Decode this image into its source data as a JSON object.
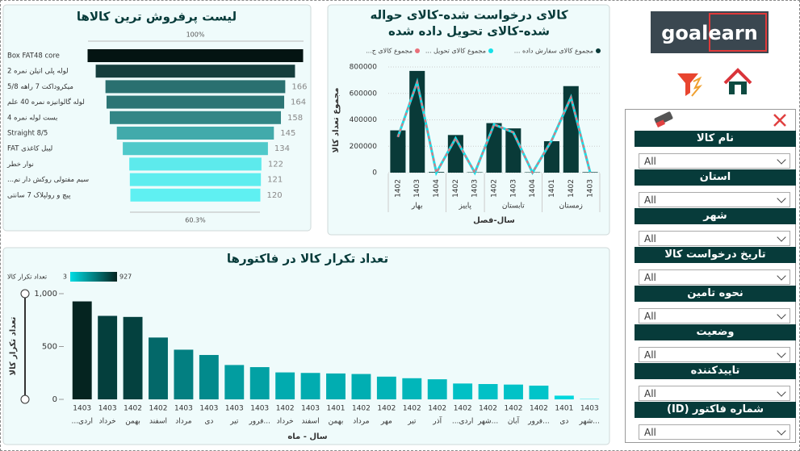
{
  "logo": "goalearn",
  "chart_data": [
    {
      "type": "funnel",
      "title": "لیست پرفروش ترین کالاها",
      "categories": [
        "Box FAT48 core",
        "لوله پلی اتیلن نمره 2",
        "میکروداکت 7 راهه 5/8",
        "لوله گالوانیزه نمره 40 علم",
        "بست لوله نمره 4",
        "Straight 8/5",
        "لیبل کاغذی FAT",
        "نوار خطر",
        "سیم مفتولی روکش دار نم...",
        "پیچ و رولپلاک 7 سانتی"
      ],
      "values": [
        199,
        184,
        166,
        164,
        158,
        145,
        134,
        122,
        121,
        120
      ],
      "top_label": "100%",
      "bottom_label": "60.3%",
      "color_range": [
        "#5ff0f2",
        "#041412"
      ]
    },
    {
      "type": "combo",
      "title": [
        "کالای درخواست شده-کالای حواله",
        "شده-کالای تحویل داده شده"
      ],
      "category_groups": [
        {
          "label": "بهار",
          "categories": [
            "1402",
            "1403",
            "1404"
          ]
        },
        {
          "label": "پاییز",
          "categories": [
            "1402",
            "1403"
          ]
        },
        {
          "label": "تابستان",
          "categories": [
            "1402",
            "1403",
            "1404"
          ]
        },
        {
          "label": "زمستان",
          "categories": [
            "1401",
            "1402",
            "1403"
          ]
        }
      ],
      "series": [
        {
          "name": "مجموع کالای سفارش داده ...",
          "color": "#093a38",
          "type": "bar",
          "values": [
            320000,
            770000,
            5000,
            285000,
            3000,
            375000,
            335000,
            3000,
            238000,
            655000,
            4000
          ]
        },
        {
          "name": "مجموع کالای تحویل ...",
          "color": "#16e0e8",
          "type": "line",
          "values": [
            270000,
            685000,
            0,
            260000,
            0,
            365000,
            305000,
            0,
            245000,
            570000,
            0
          ]
        },
        {
          "name": "مجموع کالای ج...",
          "color": "#e8707a",
          "type": "line",
          "style": "dashed",
          "values": [
            270000,
            685000,
            0,
            260000,
            0,
            365000,
            305000,
            0,
            245000,
            570000,
            0
          ]
        }
      ],
      "ylim": [
        0,
        800000
      ],
      "yticks": [
        0,
        200000,
        400000,
        600000,
        800000
      ],
      "ylabel": "مجموع تعداد کالا",
      "xlabel": "سال-فصل",
      "grid": true
    },
    {
      "type": "bar",
      "title": "تعداد تکرار کالا در فاکتورها",
      "categories": [
        [
          "1403",
          "اردی..."
        ],
        [
          "1403",
          "خرداد"
        ],
        [
          "1402",
          "بهمن"
        ],
        [
          "1402",
          "اسفند"
        ],
        [
          "1403",
          "مرداد"
        ],
        [
          "1403",
          "دی"
        ],
        [
          "1403",
          "تیر"
        ],
        [
          "1403",
          "...فرور"
        ],
        [
          "1402",
          "خرداد"
        ],
        [
          "1403",
          "اسفند"
        ],
        [
          "1401",
          "بهمن"
        ],
        [
          "1402",
          "مرداد"
        ],
        [
          "1402",
          "مهر"
        ],
        [
          "1402",
          "تیر"
        ],
        [
          "1402",
          "آذر"
        ],
        [
          "1402",
          "اردی..."
        ],
        [
          "1402",
          "...شهر"
        ],
        [
          "1402",
          "آبان"
        ],
        [
          "1402",
          "...فرور"
        ],
        [
          "1401",
          "دی"
        ],
        [
          "1403",
          "...شهر"
        ]
      ],
      "values": [
        927,
        790,
        780,
        585,
        470,
        420,
        325,
        305,
        255,
        250,
        245,
        240,
        215,
        200,
        190,
        150,
        145,
        140,
        130,
        35,
        3
      ],
      "ylim": [
        0,
        1000
      ],
      "yticks": [
        0,
        500,
        {
          "value": 1000,
          "label": "1,000"
        }
      ],
      "ylabel": "تعداد تکرار کالا",
      "xlabel": "سال - ماه",
      "color_scale": {
        "title": "تعداد تکرار کالا",
        "min": 3,
        "max": 927,
        "colors": [
          "#00dde4",
          "#052420"
        ]
      }
    }
  ],
  "slicers": [
    {
      "label": "نام کالا",
      "value": "All"
    },
    {
      "label": "استان",
      "value": "All"
    },
    {
      "label": "شهر",
      "value": "All"
    },
    {
      "label": "تاریخ درخواست کالا",
      "value": "All"
    },
    {
      "label": "نحوه تامین",
      "value": "All"
    },
    {
      "label": "وضعیت",
      "value": "All"
    },
    {
      "label": "تاییدکننده",
      "value": "All"
    },
    {
      "label": "شماره فاکتور (ID)",
      "value": "All"
    }
  ]
}
